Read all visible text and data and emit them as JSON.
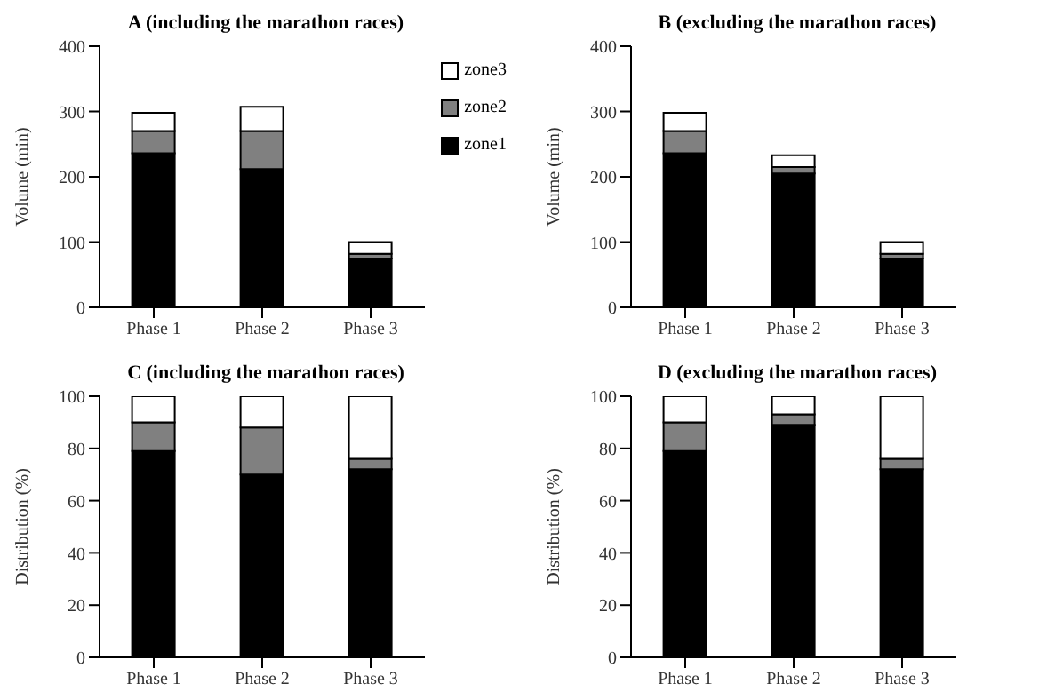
{
  "chart_data": [
    {
      "type": "bar",
      "title": "A (including the marathon races)",
      "ylabel": "Volume (min)",
      "categories": [
        "Phase 1",
        "Phase 2",
        "Phase 3"
      ],
      "stacked": true,
      "ylim": [
        0,
        400
      ],
      "yticks": [
        0,
        100,
        200,
        300,
        400
      ],
      "grid": false,
      "legend": "top right",
      "series": [
        {
          "name": "zone1",
          "color": "#000000",
          "values": [
            236,
            212,
            75
          ]
        },
        {
          "name": "zone2",
          "color": "#808080",
          "values": [
            34,
            58,
            7
          ]
        },
        {
          "name": "zone3",
          "color": "#ffffff",
          "values": [
            28,
            37,
            18
          ]
        }
      ]
    },
    {
      "type": "bar",
      "title": "B (excluding the marathon races)",
      "ylabel": "Volume (min)",
      "categories": [
        "Phase 1",
        "Phase 2",
        "Phase 3"
      ],
      "stacked": true,
      "ylim": [
        0,
        400
      ],
      "yticks": [
        0,
        100,
        200,
        300,
        400
      ],
      "grid": false,
      "legend": false,
      "series": [
        {
          "color": "#000000",
          "values": [
            236,
            205,
            75
          ]
        },
        {
          "color": "#808080",
          "values": [
            34,
            10,
            7
          ]
        },
        {
          "color": "#ffffff",
          "values": [
            28,
            18,
            18
          ]
        }
      ]
    },
    {
      "type": "bar",
      "title": "C (including the marathon races)",
      "ylabel": "Distribution (%)",
      "categories": [
        "Phase 1",
        "Phase 2",
        "Phase 3"
      ],
      "stacked": true,
      "ylim": [
        0,
        100
      ],
      "yticks": [
        0,
        20,
        40,
        60,
        80,
        100
      ],
      "grid": false,
      "legend": false,
      "series": [
        {
          "color": "#000000",
          "values": [
            79,
            70,
            72
          ]
        },
        {
          "color": "#808080",
          "values": [
            11,
            18,
            4
          ]
        },
        {
          "color": "#ffffff",
          "values": [
            10,
            12,
            24
          ]
        }
      ]
    },
    {
      "type": "bar",
      "title": "D (excluding the marathon races)",
      "ylabel": "Distribution (%)",
      "categories": [
        "Phase 1",
        "Phase 2",
        "Phase 3"
      ],
      "stacked": true,
      "ylim": [
        0,
        100
      ],
      "yticks": [
        0,
        20,
        40,
        60,
        80,
        100
      ],
      "grid": false,
      "legend": false,
      "series": [
        {
          "color": "#000000",
          "values": [
            79,
            89,
            72
          ]
        },
        {
          "color": "#808080",
          "values": [
            11,
            4,
            4
          ]
        },
        {
          "color": "#ffffff",
          "values": [
            10,
            7,
            24
          ]
        }
      ]
    }
  ]
}
